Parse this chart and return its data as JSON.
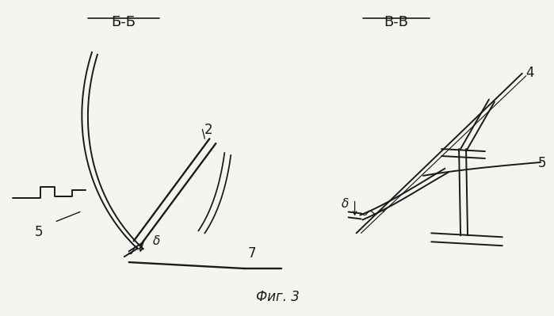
{
  "bg_color": "#f5f5f0",
  "line_color": "#1a1a1a",
  "title_BB": "Б-Б",
  "title_VV": "В-В",
  "fig_label": "Фиг. 3"
}
